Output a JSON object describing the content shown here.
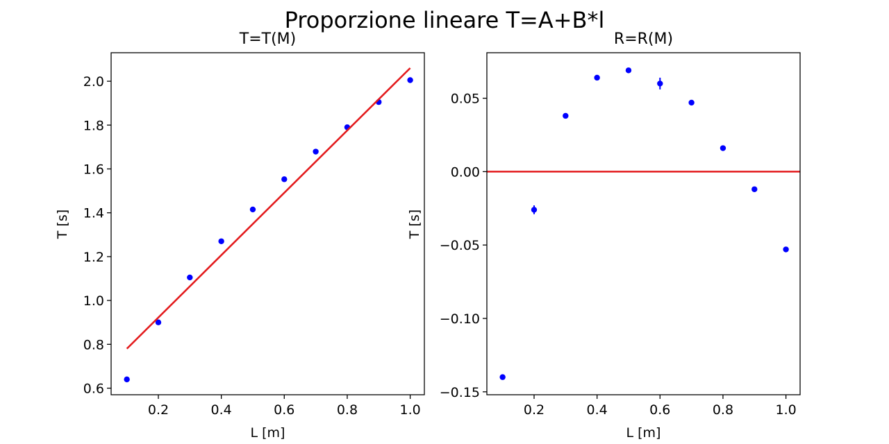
{
  "figure": {
    "suptitle": "Proporzione lineare T=A+B*l"
  },
  "colors": {
    "points": "#0000ff",
    "fit_line": "#e31a1c",
    "background": "#ffffff",
    "axes": "#000000"
  },
  "chart_data": [
    {
      "type": "scatter",
      "title": "T=T(M)",
      "xlabel": "L [m]",
      "ylabel": "T [s]",
      "xlim": [
        0.05,
        1.045
      ],
      "ylim": [
        0.57,
        2.13
      ],
      "xticks": [
        0.2,
        0.4,
        0.6,
        0.8,
        1.0
      ],
      "xtick_labels": [
        "0.2",
        "0.4",
        "0.6",
        "0.8",
        "1.0"
      ],
      "yticks": [
        0.6,
        0.8,
        1.0,
        1.2,
        1.4,
        1.6,
        1.8,
        2.0
      ],
      "ytick_labels": [
        "0.6",
        "0.8",
        "1.0",
        "1.2",
        "1.4",
        "1.6",
        "1.8",
        "2.0"
      ],
      "grid": false,
      "series": [
        {
          "kind": "points",
          "color": "#0000ff",
          "x": [
            0.1,
            0.2,
            0.3,
            0.4,
            0.5,
            0.6,
            0.7,
            0.8,
            0.9,
            1.0
          ],
          "y": [
            0.64,
            0.9,
            1.105,
            1.27,
            1.415,
            1.553,
            1.679,
            1.79,
            1.905,
            2.005
          ],
          "yerr": [
            0.003,
            0.003,
            0.003,
            0.003,
            0.003,
            0.003,
            0.003,
            0.003,
            0.003,
            0.003
          ]
        },
        {
          "kind": "line",
          "color": "#e31a1c",
          "x": [
            0.1,
            1.0
          ],
          "y": [
            0.78,
            2.06
          ]
        }
      ]
    },
    {
      "type": "scatter",
      "title": "R=R(M)",
      "xlabel": "L [m]",
      "ylabel": "T [s]",
      "xlim": [
        0.05,
        1.045
      ],
      "ylim": [
        -0.152,
        0.081
      ],
      "xticks": [
        0.2,
        0.4,
        0.6,
        0.8,
        1.0
      ],
      "xtick_labels": [
        "0.2",
        "0.4",
        "0.6",
        "0.8",
        "1.0"
      ],
      "yticks": [
        0.05,
        0.0,
        -0.05,
        -0.1,
        -0.15
      ],
      "ytick_labels": [
        "0.05",
        "0.00",
        "−0.05",
        "−0.10",
        "−0.15"
      ],
      "grid": false,
      "series": [
        {
          "kind": "points",
          "color": "#0000ff",
          "x": [
            0.1,
            0.2,
            0.3,
            0.4,
            0.5,
            0.6,
            0.7,
            0.8,
            0.9,
            1.0
          ],
          "y": [
            -0.14,
            -0.026,
            0.038,
            0.064,
            0.069,
            0.06,
            0.047,
            0.016,
            -0.012,
            -0.053
          ],
          "yerr": [
            0.001,
            0.003,
            0.001,
            0.001,
            0.001,
            0.004,
            0.001,
            0.001,
            0.001,
            0.001
          ]
        },
        {
          "kind": "hline",
          "color": "#e31a1c",
          "y": 0.0
        }
      ]
    }
  ]
}
